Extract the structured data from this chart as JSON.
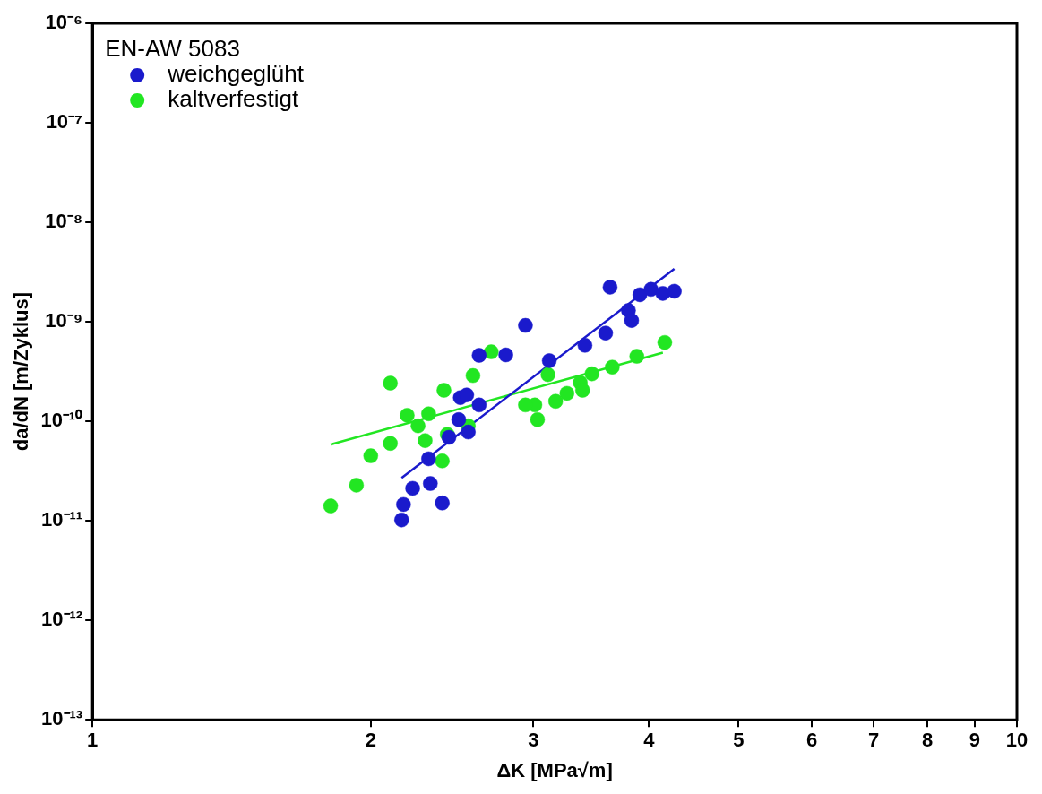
{
  "chart_data": {
    "type": "scatter",
    "xlabel": "ΔK [MPa√m]",
    "ylabel": "da/dN [m/Zyklus]",
    "legend_title": "EN-AW 5083",
    "legend": "top left",
    "log": "xy",
    "grid": false,
    "marker": "circle",
    "xlim": [
      1,
      10
    ],
    "xticks": [
      1,
      2,
      3,
      4,
      5,
      6,
      7,
      8,
      9,
      10
    ],
    "ylim": [
      1e-13,
      1e-06
    ],
    "yticks": [
      {
        "value": 1e-13,
        "label": "10⁻¹³"
      },
      {
        "value": 1e-12,
        "label": "10⁻¹²"
      },
      {
        "value": 1e-11,
        "label": "10⁻¹¹"
      },
      {
        "value": 1e-10,
        "label": "10⁻¹⁰"
      },
      {
        "value": 1e-09,
        "label": "10⁻⁹"
      },
      {
        "value": 1e-08,
        "label": "10⁻⁸"
      },
      {
        "value": 1e-07,
        "label": "10⁻⁷"
      },
      {
        "value": 1e-06,
        "label": "10⁻⁶"
      }
    ],
    "series": [
      {
        "name": "weichgeglüht",
        "color": "#1a1acc",
        "x": [
          3.63,
          3.91,
          4.02,
          4.14,
          4.26,
          3.8,
          3.83,
          2.94,
          3.59,
          3.41,
          3.12,
          2.62,
          2.8,
          2.5,
          2.54,
          2.62,
          2.49,
          2.55,
          2.43,
          2.31,
          2.22,
          2.32,
          2.17,
          2.39,
          2.16
        ],
        "values": [
          2.23e-09,
          1.87e-09,
          2.12e-09,
          1.93e-09,
          2.03e-09,
          1.3e-09,
          1.03e-09,
          9.2e-10,
          7.7e-10,
          5.8e-10,
          4.07e-10,
          4.6e-10,
          4.65e-10,
          1.73e-10,
          1.84e-10,
          1.46e-10,
          1.04e-10,
          7.8e-11,
          6.9e-11,
          4.2e-11,
          2.12e-11,
          2.37e-11,
          1.46e-11,
          1.51e-11,
          1.02e-11
        ]
      },
      {
        "name": "kaltverfestigt",
        "color": "#22e622",
        "x": [
          4.16,
          3.88,
          3.65,
          3.47,
          3.37,
          3.39,
          3.26,
          3.17,
          3.11,
          3.01,
          2.94,
          3.03,
          2.7,
          2.58,
          2.4,
          2.55,
          2.42,
          2.39,
          2.31,
          2.19,
          2.25,
          2.29,
          2.1,
          2.1,
          2.0,
          1.93,
          1.81
        ],
        "values": [
          6.2e-10,
          4.5e-10,
          3.5e-10,
          3e-10,
          2.45e-10,
          2.05e-10,
          1.91e-10,
          1.59e-10,
          2.94e-10,
          1.46e-10,
          1.46e-10,
          1.04e-10,
          4.99e-10,
          2.88e-10,
          2.05e-10,
          9e-11,
          7.4e-11,
          4e-11,
          1.19e-10,
          1.15e-10,
          9e-11,
          6.4e-11,
          2.42e-10,
          6e-11,
          4.5e-11,
          2.28e-11,
          1.41e-11
        ]
      },
      {
        "type": "line",
        "color": "#1a1acc",
        "line_style": "solid",
        "marker": "none",
        "x": [
          2.16,
          4.26
        ],
        "values": [
          2.7e-11,
          3.4e-09
        ]
      },
      {
        "type": "line",
        "color": "#22e622",
        "line_style": "solid",
        "marker": "none",
        "x": [
          1.81,
          4.14
        ],
        "values": [
          5.85e-11,
          4.9e-10
        ]
      }
    ]
  }
}
